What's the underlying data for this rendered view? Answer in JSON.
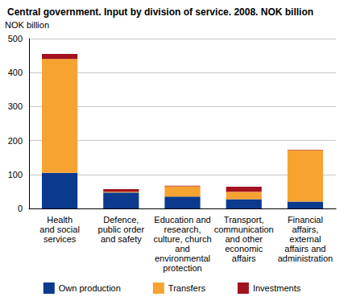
{
  "chart_data": {
    "type": "bar",
    "title": "Central government. Input by division of service. 2008. NOK billion",
    "y_label": "NOK billion",
    "categories": [
      "Health\nand social\nservices",
      "Defence,\npublic order\nand safety",
      "Education and\nresearch,\nculture, church\nand\nenvironmental\nprotection",
      "Transport,\ncommunication\nand other\neconomic\naffairs",
      "Financial\naffairs,\nexternal\naffairs and\nadministration"
    ],
    "series": [
      {
        "name": "Own production",
        "color": "#0b3a8e",
        "values": [
          105,
          47,
          35,
          27,
          20
        ]
      },
      {
        "name": "Transfers",
        "color": "#f7a331",
        "values": [
          335,
          2,
          30,
          22,
          152
        ]
      },
      {
        "name": "Investments",
        "color": "#a3121f",
        "values": [
          15,
          8,
          2,
          15,
          1
        ]
      }
    ],
    "ylim": [
      0,
      500
    ],
    "yticks": [
      0,
      100,
      200,
      300,
      400,
      500
    ],
    "stacked": true,
    "grid": true,
    "legend": "bottom"
  }
}
